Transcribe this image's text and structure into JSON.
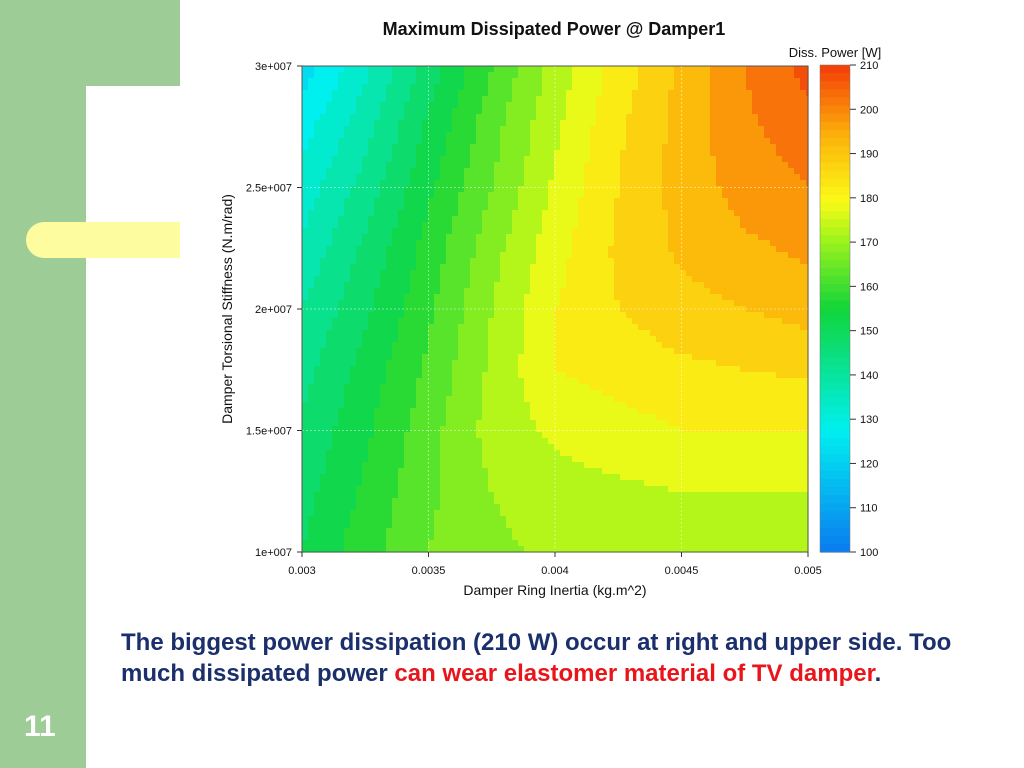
{
  "slide": {
    "number": "11",
    "caption_dark1": "The biggest power dissipation (210 W) occur at right and upper side. Too much dissipated power ",
    "caption_red": "can wear elastomer material of TV damper",
    "caption_dark2": "."
  },
  "colors": {
    "caption_dark": "#1a2f6b",
    "caption_red": "#e8161b",
    "band_green": "#9dcc96",
    "pill_yellow": "#fdfda0"
  },
  "chart_data": {
    "type": "heatmap",
    "title": "Maximum Dissipated Power @ Damper1",
    "xlabel": "Damper Ring Inertia (kg.m^2)",
    "ylabel": "Damper Torsional Stiffness (N.m/rad)",
    "colorbar_label": "Diss. Power [W]",
    "xlim": [
      0.003,
      0.005
    ],
    "ylim": [
      10000000,
      30000000
    ],
    "clim": [
      100,
      210
    ],
    "x_ticks": [
      0.003,
      0.0035,
      0.004,
      0.0045,
      0.005
    ],
    "x_tick_labels": [
      "0.003",
      "0.0035",
      "0.004",
      "0.0045",
      "0.005"
    ],
    "y_ticks": [
      10000000,
      15000000,
      20000000,
      25000000,
      30000000
    ],
    "y_tick_labels": [
      "1e+007",
      "1.5e+007",
      "2e+007",
      "2.5e+007",
      "3e+007"
    ],
    "colorbar_ticks": [
      100,
      110,
      120,
      130,
      140,
      150,
      160,
      170,
      180,
      190,
      200,
      210
    ],
    "colorbar_tick_labels": [
      "100",
      "110",
      "120",
      "130",
      "140",
      "150",
      "160",
      "170",
      "180",
      "190",
      "200",
      "210"
    ],
    "grid": true,
    "x": [
      0.003,
      0.00325,
      0.0035,
      0.00375,
      0.004,
      0.00425,
      0.0045,
      0.00475,
      0.005
    ],
    "y": [
      10000000,
      12500000,
      15000000,
      17500000,
      20000000,
      22500000,
      25000000,
      27500000,
      30000000
    ],
    "z": [
      [
        150,
        158,
        165,
        169,
        171,
        172,
        172,
        172,
        172
      ],
      [
        148,
        156,
        164,
        170,
        173,
        174,
        175,
        175,
        175
      ],
      [
        146,
        154,
        163,
        172,
        176,
        178,
        180,
        180,
        180
      ],
      [
        143,
        152,
        161,
        171,
        180,
        182,
        184,
        185,
        186
      ],
      [
        140,
        149,
        159,
        170,
        180,
        185,
        188,
        190,
        192
      ],
      [
        136,
        146,
        157,
        168,
        178,
        186,
        191,
        194,
        196
      ],
      [
        132,
        142,
        154,
        165,
        176,
        185,
        192,
        197,
        200
      ],
      [
        128,
        138,
        151,
        163,
        174,
        184,
        192,
        199,
        203
      ],
      [
        122,
        134,
        147,
        160,
        172,
        182,
        191,
        200,
        207
      ]
    ]
  }
}
